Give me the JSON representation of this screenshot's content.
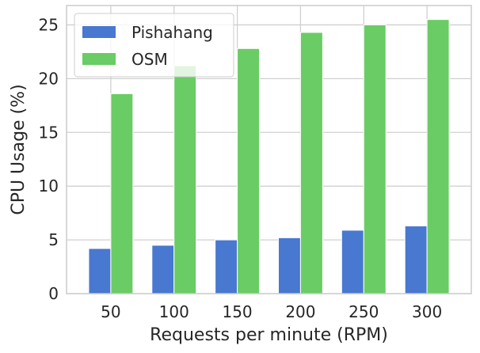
{
  "chart_data": {
    "type": "bar",
    "categories": [
      "50",
      "100",
      "150",
      "200",
      "250",
      "300"
    ],
    "series": [
      {
        "name": "Pishahang",
        "color": "#4878d0",
        "values": [
          4.2,
          4.5,
          5.0,
          5.2,
          5.9,
          6.3
        ]
      },
      {
        "name": "OSM",
        "color": "#6acc64",
        "values": [
          18.6,
          21.2,
          22.8,
          24.3,
          25.0,
          25.5
        ]
      }
    ],
    "title": "",
    "xlabel": "Requests per minute (RPM)",
    "ylabel": "CPU Usage (%)",
    "ylim": [
      0,
      26.8
    ],
    "yticks": [
      0,
      5,
      10,
      15,
      20,
      25
    ],
    "grid": true,
    "legend_position": "top-left"
  }
}
